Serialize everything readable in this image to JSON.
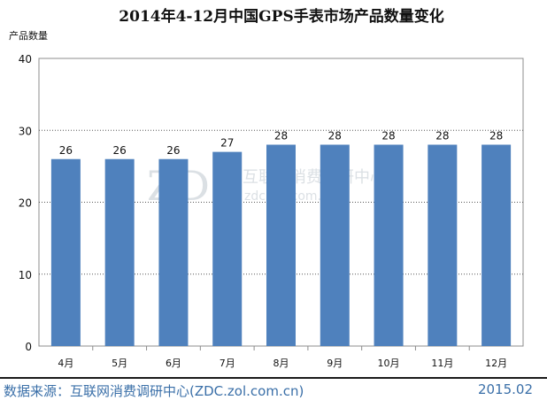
{
  "chart_data": {
    "type": "bar",
    "title": "2014年4-12月中国GPS手表市场产品数量变化",
    "ylabel": "产品数量",
    "xlabel": "",
    "categories": [
      "4月",
      "5月",
      "6月",
      "7月",
      "8月",
      "9月",
      "10月",
      "11月",
      "12月"
    ],
    "values": [
      26,
      26,
      26,
      27,
      28,
      28,
      28,
      28,
      28
    ],
    "ylim": [
      0,
      40
    ],
    "yticks": [
      "0",
      "10",
      "20",
      "30",
      "40"
    ],
    "grid": true,
    "bar_color": "#4f81bd"
  },
  "watermark": {
    "logo": "ZDC",
    "name": "互联网消费调研中心",
    "url": "zdc.zol.com.cn"
  },
  "footer": {
    "source": "数据来源：互联网消费调研中心(ZDC.zol.com.cn)",
    "date": "2015.02"
  }
}
